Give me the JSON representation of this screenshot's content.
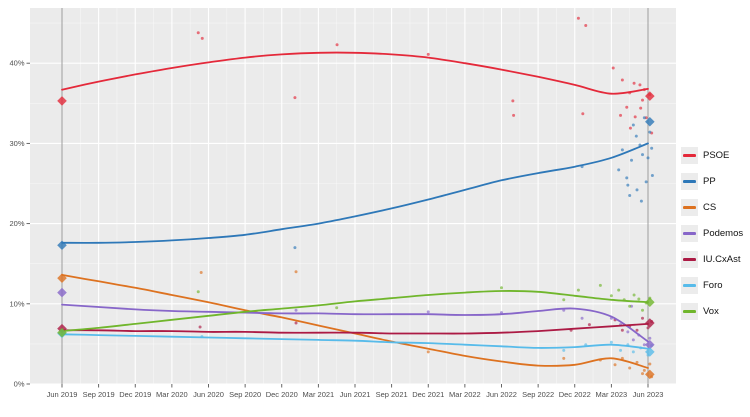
{
  "chart_data": {
    "type": "line",
    "title": "",
    "x_axis": {
      "tick_labels": [
        "Jun 2019",
        "Sep 2019",
        "Dec 2019",
        "Mar 2020",
        "Jun 2020",
        "Sep 2020",
        "Dec 2020",
        "Mar 2021",
        "Jun 2021",
        "Sep 2021",
        "Dec 2021",
        "Mar 2022",
        "Jun 2022",
        "Sep 2022",
        "Dec 2022",
        "Mar 2023",
        "Jun 2023"
      ]
    },
    "y_axis": {
      "tick_labels": [
        "0%",
        "10%",
        "20%",
        "30%",
        "40%"
      ],
      "tick_values": [
        0,
        10,
        20,
        30,
        40
      ]
    },
    "ylim": [
      0,
      46.9
    ],
    "grid": "on",
    "legend_position": "right",
    "plot_background": "#ebebeb",
    "gridline_color": "#ffffff",
    "election_line_color": "#9c9c9c",
    "election_lines_quarters": [
      0,
      16
    ],
    "series": [
      {
        "name": "PSOE",
        "color": "#e4293a",
        "trend": [
          36.7,
          37.7,
          38.6,
          39.4,
          40.1,
          40.7,
          41.1,
          41.3,
          41.3,
          41.1,
          40.7,
          40.0,
          39.2,
          38.3,
          37.3,
          36.2,
          36.8
        ],
        "election_results": {
          "jun_2019": 35.3,
          "jun_2023": 35.9
        },
        "polls": [
          [
            3.72,
            43.8
          ],
          [
            3.83,
            43.1
          ],
          [
            6.36,
            35.7
          ],
          [
            7.51,
            42.3
          ],
          [
            10.0,
            41.1
          ],
          [
            12.31,
            35.3
          ],
          [
            12.33,
            33.5
          ],
          [
            14.1,
            45.6
          ],
          [
            14.3,
            44.7
          ],
          [
            14.22,
            33.7
          ],
          [
            15.05,
            39.4
          ],
          [
            15.3,
            37.9
          ],
          [
            15.62,
            37.5
          ],
          [
            15.78,
            37.3
          ],
          [
            15.9,
            36.7
          ],
          [
            15.5,
            36.3
          ],
          [
            16.05,
            36.1
          ],
          [
            15.85,
            35.4
          ],
          [
            15.42,
            34.5
          ],
          [
            15.8,
            34.4
          ],
          [
            15.25,
            33.5
          ],
          [
            15.65,
            33.3
          ],
          [
            15.95,
            33.2
          ],
          [
            15.52,
            31.9
          ],
          [
            16.1,
            31.3
          ]
        ]
      },
      {
        "name": "PP",
        "color": "#2e78b8",
        "trend": [
          17.6,
          17.6,
          17.7,
          17.9,
          18.2,
          18.6,
          19.3,
          20.0,
          20.9,
          21.9,
          23.0,
          24.2,
          25.4,
          26.3,
          27.1,
          28.2,
          30.0
        ],
        "election_results": {
          "jun_2019": 17.3,
          "jun_2023": 32.7
        },
        "polls": [
          [
            6.36,
            17.0
          ],
          [
            14.2,
            27.1
          ],
          [
            15.2,
            26.7
          ],
          [
            15.3,
            29.2
          ],
          [
            15.42,
            25.7
          ],
          [
            15.45,
            24.8
          ],
          [
            15.55,
            27.9
          ],
          [
            15.6,
            32.3
          ],
          [
            15.68,
            30.9
          ],
          [
            15.7,
            24.2
          ],
          [
            15.78,
            29.8
          ],
          [
            15.85,
            28.6
          ],
          [
            15.9,
            33.2
          ],
          [
            15.95,
            25.2
          ],
          [
            16.0,
            28.2
          ],
          [
            16.05,
            31.4
          ],
          [
            16.1,
            29.4
          ],
          [
            15.5,
            23.5
          ],
          [
            15.82,
            22.8
          ],
          [
            16.12,
            26.0
          ]
        ]
      },
      {
        "name": "CS",
        "color": "#dd7220",
        "trend": [
          13.6,
          12.8,
          12.0,
          11.1,
          10.2,
          9.2,
          8.3,
          7.3,
          6.3,
          5.3,
          4.4,
          3.5,
          2.8,
          2.3,
          2.4,
          3.2,
          2.0
        ],
        "election_results": {
          "jun_2019": 13.2,
          "jun_2023": 1.2
        },
        "polls": [
          [
            3.8,
            13.9
          ],
          [
            6.39,
            14.0
          ],
          [
            10.0,
            4.0
          ],
          [
            13.7,
            3.2
          ],
          [
            14.7,
            3.0
          ],
          [
            15.1,
            2.4
          ],
          [
            15.3,
            3.2
          ],
          [
            15.5,
            2.0
          ],
          [
            15.7,
            2.7
          ],
          [
            15.9,
            1.7
          ],
          [
            16.05,
            2.5
          ],
          [
            15.85,
            1.3
          ],
          [
            16.1,
            0.9
          ]
        ]
      },
      {
        "name": "Podemos",
        "color": "#8766c9",
        "trend": [
          9.9,
          9.6,
          9.3,
          9.1,
          9.0,
          8.9,
          8.8,
          8.8,
          8.7,
          8.7,
          8.7,
          8.6,
          8.7,
          9.1,
          9.4,
          8.4,
          5.3
        ],
        "election_results": {
          "jun_2019": 11.4,
          "jun_2023": 4.9
        },
        "polls": [
          [
            6.39,
            9.2
          ],
          [
            10.0,
            9.0
          ],
          [
            12.0,
            8.9
          ],
          [
            13.7,
            9.2
          ],
          [
            14.2,
            8.2
          ],
          [
            15.0,
            8.2
          ],
          [
            15.25,
            7.4
          ],
          [
            15.45,
            6.5
          ],
          [
            15.6,
            5.5
          ],
          [
            15.75,
            6.1
          ],
          [
            15.9,
            4.9
          ],
          [
            16.05,
            5.7
          ],
          [
            15.55,
            9.7
          ]
        ]
      },
      {
        "name": "IU.CxAst",
        "color": "#ac1a44",
        "trend": [
          6.7,
          6.7,
          6.6,
          6.6,
          6.5,
          6.5,
          6.4,
          6.4,
          6.4,
          6.3,
          6.3,
          6.3,
          6.4,
          6.6,
          6.9,
          7.2,
          7.5
        ],
        "election_results": {
          "jun_2019": 6.9,
          "jun_2023": 7.6
        },
        "polls": [
          [
            3.77,
            7.1
          ],
          [
            6.39,
            7.6
          ],
          [
            13.9,
            6.7
          ],
          [
            14.4,
            7.4
          ],
          [
            15.1,
            8.0
          ],
          [
            15.3,
            6.7
          ],
          [
            15.5,
            7.2
          ],
          [
            15.7,
            6.7
          ],
          [
            15.85,
            8.2
          ],
          [
            16.0,
            7.0
          ],
          [
            16.1,
            7.8
          ]
        ]
      },
      {
        "name": "Foro",
        "color": "#57bbea",
        "trend": [
          6.2,
          6.1,
          6.0,
          5.9,
          5.8,
          5.7,
          5.6,
          5.5,
          5.4,
          5.2,
          5.1,
          4.9,
          4.7,
          4.5,
          4.6,
          4.9,
          4.4
        ],
        "election_results": {
          "jun_2019": 6.3,
          "jun_2023": 4.0
        },
        "polls": [
          [
            3.82,
            5.9
          ],
          [
            13.7,
            4.2
          ],
          [
            14.3,
            4.9
          ],
          [
            15.0,
            5.2
          ],
          [
            15.25,
            4.2
          ],
          [
            15.45,
            4.9
          ],
          [
            15.6,
            4.0
          ],
          [
            15.8,
            4.5
          ],
          [
            16.0,
            3.6
          ],
          [
            16.1,
            4.8
          ]
        ]
      },
      {
        "name": "Vox",
        "color": "#70b62c",
        "trend": [
          6.6,
          7.0,
          7.5,
          8.0,
          8.5,
          9.0,
          9.4,
          9.8,
          10.3,
          10.7,
          11.1,
          11.4,
          11.6,
          11.5,
          11.0,
          10.5,
          10.2
        ],
        "election_results": {
          "jun_2019": 6.4,
          "jun_2023": 10.2
        },
        "polls": [
          [
            3.72,
            11.5
          ],
          [
            7.5,
            9.5
          ],
          [
            12.0,
            12.0
          ],
          [
            13.7,
            10.5
          ],
          [
            14.1,
            11.7
          ],
          [
            14.7,
            12.3
          ],
          [
            15.0,
            11.0
          ],
          [
            15.2,
            11.7
          ],
          [
            15.35,
            10.5
          ],
          [
            15.5,
            9.7
          ],
          [
            15.62,
            11.1
          ],
          [
            15.75,
            10.6
          ],
          [
            15.85,
            9.2
          ],
          [
            15.95,
            10.1
          ],
          [
            16.05,
            10.7
          ]
        ]
      }
    ]
  }
}
